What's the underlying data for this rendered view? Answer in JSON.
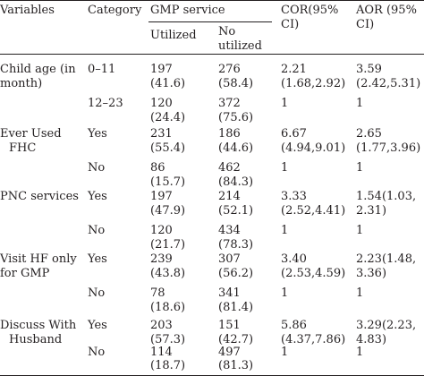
{
  "table": {
    "headers": {
      "variables": "Variables",
      "category": "Category",
      "gmp_service": "GMP service",
      "utilized": "Utilized",
      "not_utilized_l1": "No",
      "not_utilized_l2": "utilized",
      "cor_l1": "COR(95%",
      "cor_l2": "CI)",
      "aor_l1": "AOR (95%",
      "aor_l2": "CI)"
    },
    "groups": [
      {
        "variable": [
          "Child age (in",
          "month)"
        ],
        "rows": [
          {
            "category": "0–11",
            "utilized": [
              "197",
              "(41.6)"
            ],
            "not_utilized": [
              "276",
              "(58.4)"
            ],
            "cor": [
              "2.21",
              "(1.68,2.92)"
            ],
            "aor": [
              "3.59",
              "(2.42,5.31)"
            ]
          },
          {
            "category": "12–23",
            "utilized": [
              "120",
              "(24.4)"
            ],
            "not_utilized": [
              "372",
              "(75.6)"
            ],
            "cor": [
              "1",
              ""
            ],
            "aor": [
              "1",
              ""
            ]
          }
        ]
      },
      {
        "variable": [
          "Ever Used",
          "FHC"
        ],
        "rows": [
          {
            "category": "Yes",
            "utilized": [
              "231",
              "(55.4)"
            ],
            "not_utilized": [
              "186",
              "(44.6)"
            ],
            "cor": [
              "6.67",
              "(4.94,9.01)"
            ],
            "aor": [
              "2.65",
              "(1.77,3.96)"
            ]
          },
          {
            "category": "No",
            "utilized": [
              "86",
              "(15.7)"
            ],
            "not_utilized": [
              "462",
              "(84.3)"
            ],
            "cor": [
              "1",
              ""
            ],
            "aor": [
              "1",
              ""
            ]
          }
        ]
      },
      {
        "variable": [
          "PNC services",
          ""
        ],
        "rows": [
          {
            "category": "Yes",
            "utilized": [
              "197",
              "(47.9)"
            ],
            "not_utilized": [
              "214",
              "(52.1)"
            ],
            "cor": [
              "3.33",
              "(2.52,4.41)"
            ],
            "aor": [
              "1.54(1.03,",
              "2.31)"
            ]
          },
          {
            "category": "No",
            "utilized": [
              "120",
              "(21.7)"
            ],
            "not_utilized": [
              "434",
              "(78.3)"
            ],
            "cor": [
              "1",
              ""
            ],
            "aor": [
              "1",
              ""
            ]
          }
        ]
      },
      {
        "variable": [
          "Visit HF only",
          "for GMP"
        ],
        "rows": [
          {
            "category": "Yes",
            "utilized": [
              "239",
              "(43.8)"
            ],
            "not_utilized": [
              "307",
              "(56.2)"
            ],
            "cor": [
              "3.40",
              "(2.53,4.59)"
            ],
            "aor": [
              "2.23(1.48,",
              "3.36)"
            ]
          },
          {
            "category": "No",
            "utilized": [
              "78",
              "(18.6)"
            ],
            "not_utilized": [
              "341",
              "(81.4)"
            ],
            "cor": [
              "1",
              ""
            ],
            "aor": [
              "1",
              ""
            ]
          }
        ]
      },
      {
        "variable": [
          "Discuss With",
          "Husband"
        ],
        "rows": [
          {
            "category": "Yes",
            "utilized": [
              "203",
              "(57.3)"
            ],
            "not_utilized": [
              "151",
              "(42.7)"
            ],
            "cor": [
              "5.86",
              "(4.37,7.86)"
            ],
            "aor": [
              "3.29(2.23,",
              "4.83)"
            ]
          },
          {
            "category": "No",
            "utilized": [
              "114",
              "(18.7)"
            ],
            "not_utilized": [
              "497",
              "(81.3)"
            ],
            "cor": [
              "1",
              ""
            ],
            "aor": [
              "1",
              ""
            ]
          }
        ]
      }
    ]
  }
}
